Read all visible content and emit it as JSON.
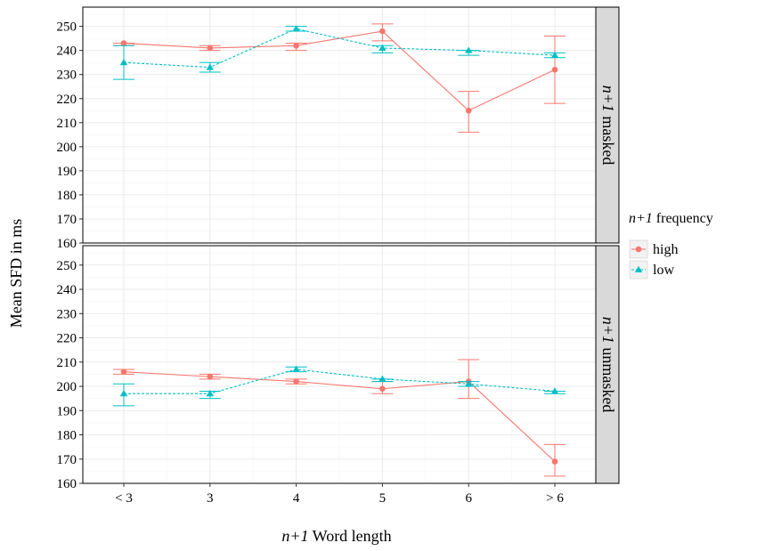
{
  "chart_data": {
    "type": "line",
    "categories": [
      "< 3",
      "3",
      "4",
      "5",
      "6",
      "> 6"
    ],
    "ylabel": "Mean SFD in ms",
    "xlabel": {
      "italic": "n+1",
      "rest": " Word length"
    },
    "ylim": [
      160,
      258
    ],
    "yticks": [
      160,
      170,
      180,
      190,
      200,
      210,
      220,
      230,
      240,
      250
    ],
    "grid": true,
    "legend": {
      "title_italic": "n+1",
      "title_rest": "  frequency",
      "position": "right"
    },
    "panels": [
      {
        "strip_italic": "n+1",
        "strip_rest": " masked",
        "series": [
          {
            "name": "high",
            "values": [
              243,
              241,
              242,
              248,
              215,
              232
            ],
            "err_low": [
              242,
              240,
              240,
              244,
              206,
              218
            ],
            "err_high": [
              243,
              242,
              243,
              251,
              223,
              246
            ]
          },
          {
            "name": "low",
            "values": [
              235,
              233,
              249,
              241,
              240,
              238
            ],
            "err_low": [
              228,
              231,
              248,
              239,
              238,
              237
            ],
            "err_high": [
              242,
              235,
              250,
              242,
              240,
              239
            ]
          }
        ]
      },
      {
        "strip_italic": "n+1",
        "strip_rest": " unmasked",
        "series": [
          {
            "name": "high",
            "values": [
              206,
              204,
              202,
              199,
              202,
              169
            ],
            "err_low": [
              205,
              203,
              201,
              197,
              195,
              163
            ],
            "err_high": [
              207,
              205,
              203,
              202,
              211,
              176
            ]
          },
          {
            "name": "low",
            "values": [
              197,
              197,
              207,
              203,
              201,
              198
            ],
            "err_low": [
              192,
              195,
              206,
              202,
              200,
              197
            ],
            "err_high": [
              201,
              198,
              208,
              203,
              202,
              198
            ]
          }
        ]
      }
    ]
  },
  "colors": {
    "high": "#f8766d",
    "low": "#00bfc4",
    "strip_bg": "#d9d9d9",
    "grid_major": "#ebebeb",
    "grid_minor": "#f5f5f5"
  }
}
